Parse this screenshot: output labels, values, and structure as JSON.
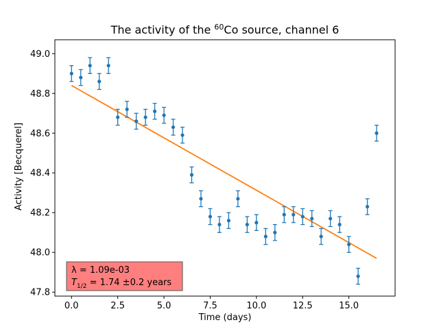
{
  "chart_data": {
    "type": "scatter",
    "title": "The activity of the ⁶⁰Co source, channel 6",
    "title_prefix": "The activity of the ",
    "title_sup": "60",
    "title_suffix": "Co source, channel 6",
    "xlabel": "Time (days)",
    "ylabel": "Activity [Becquerel]",
    "xlim": [
      -0.9,
      17.5
    ],
    "ylim": [
      47.78,
      49.07
    ],
    "xticks": [
      0.0,
      2.5,
      5.0,
      7.5,
      10.0,
      12.5,
      15.0
    ],
    "xtick_labels": [
      "0.0",
      "2.5",
      "5.0",
      "7.5",
      "10.0",
      "12.5",
      "15.0"
    ],
    "yticks": [
      47.8,
      48.0,
      48.2,
      48.4,
      48.6,
      48.8,
      49.0
    ],
    "ytick_labels": [
      "47.8",
      "48.0",
      "48.2",
      "48.4",
      "48.6",
      "48.8",
      "49.0"
    ],
    "grid": false,
    "series": [
      {
        "color": "#1f77b4",
        "x": [
          0.0,
          0.5,
          1.0,
          1.5,
          2.0,
          2.5,
          3.0,
          3.5,
          4.0,
          4.5,
          5.0,
          5.5,
          6.0,
          6.5,
          7.0,
          7.5,
          8.0,
          8.5,
          9.0,
          9.5,
          10.0,
          10.5,
          11.0,
          11.5,
          12.0,
          12.5,
          13.0,
          13.5,
          14.0,
          14.5,
          15.0,
          15.5,
          16.0,
          16.5
        ],
        "y": [
          48.9,
          48.88,
          48.94,
          48.86,
          48.94,
          48.68,
          48.72,
          48.66,
          48.68,
          48.71,
          48.69,
          48.63,
          48.59,
          48.39,
          48.27,
          48.18,
          48.14,
          48.16,
          48.27,
          48.14,
          48.15,
          48.08,
          48.1,
          48.19,
          48.19,
          48.18,
          48.17,
          48.08,
          48.17,
          48.14,
          48.04,
          47.88,
          48.23,
          48.6
        ],
        "err": [
          0.04,
          0.04,
          0.04,
          0.04,
          0.04,
          0.04,
          0.04,
          0.04,
          0.04,
          0.04,
          0.04,
          0.04,
          0.04,
          0.04,
          0.04,
          0.04,
          0.04,
          0.04,
          0.04,
          0.04,
          0.04,
          0.04,
          0.04,
          0.04,
          0.04,
          0.04,
          0.04,
          0.04,
          0.04,
          0.04,
          0.04,
          0.04,
          0.04,
          0.04
        ]
      },
      {
        "type": "line",
        "color": "#ff7f0e",
        "x": [
          0.0,
          16.5
        ],
        "y": [
          48.84,
          47.97
        ]
      }
    ],
    "annotation": {
      "line1": "λ = 1.09e-03",
      "line2_prefix": "T",
      "line2_sub": "1/2",
      "line2_suffix": " = 1.74 ±0.2 years",
      "box_color": "#ff7f7f",
      "placement": "bottom-left"
    }
  }
}
